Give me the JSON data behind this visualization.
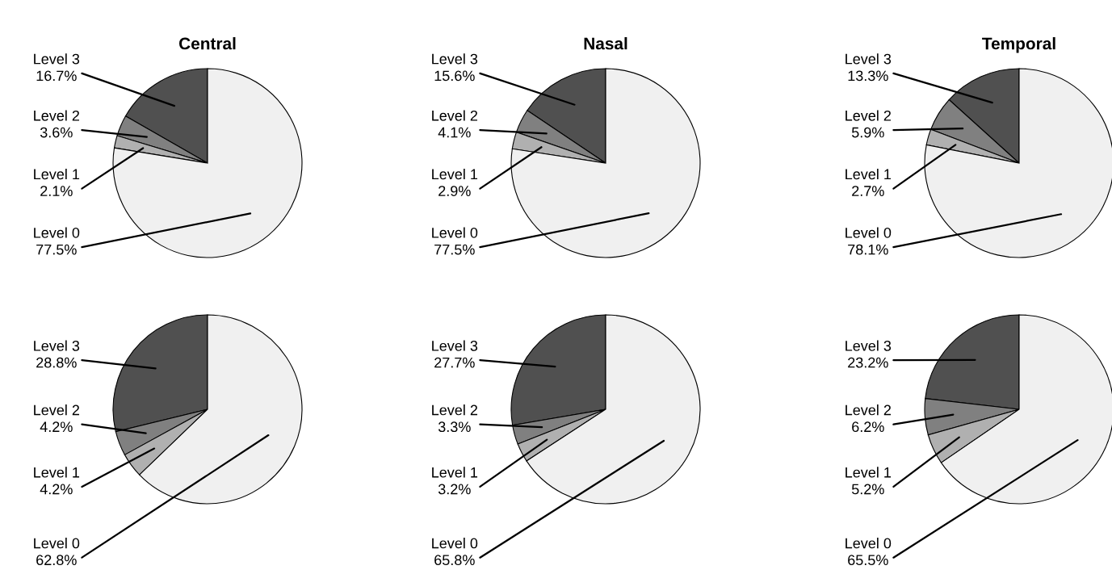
{
  "chart_data": [
    {
      "type": "pie",
      "title": "Central",
      "categories": [
        "Level 3",
        "Level 2",
        "Level 1",
        "Level 0"
      ],
      "values": [
        16.7,
        3.6,
        2.1,
        77.5
      ],
      "value_labels": [
        "16.7%",
        "3.6%",
        "2.1%",
        "77.5%"
      ],
      "colors": [
        "#505050",
        "#808080",
        "#b0b0b0",
        "#f0f0f0"
      ]
    },
    {
      "type": "pie",
      "title": "Nasal",
      "categories": [
        "Level 3",
        "Level 2",
        "Level 1",
        "Level 0"
      ],
      "values": [
        15.6,
        4.1,
        2.9,
        77.5
      ],
      "value_labels": [
        "15.6%",
        "4.1%",
        "2.9%",
        "77.5%"
      ],
      "colors": [
        "#505050",
        "#808080",
        "#b0b0b0",
        "#f0f0f0"
      ]
    },
    {
      "type": "pie",
      "title": "Temporal",
      "categories": [
        "Level 3",
        "Level 2",
        "Level 1",
        "Level 0"
      ],
      "values": [
        13.3,
        5.9,
        2.7,
        78.1
      ],
      "value_labels": [
        "13.3%",
        "5.9%",
        "2.7%",
        "78.1%"
      ],
      "colors": [
        "#505050",
        "#808080",
        "#b0b0b0",
        "#f0f0f0"
      ]
    },
    {
      "type": "pie",
      "categories": [
        "Level 3",
        "Level 2",
        "Level 1",
        "Level 0"
      ],
      "values": [
        28.8,
        4.2,
        4.2,
        62.8
      ],
      "value_labels": [
        "28.8%",
        "4.2%",
        "4.2%",
        "62.8%"
      ],
      "colors": [
        "#505050",
        "#808080",
        "#b0b0b0",
        "#f0f0f0"
      ]
    },
    {
      "type": "pie",
      "categories": [
        "Level 3",
        "Level 2",
        "Level 1",
        "Level 0"
      ],
      "values": [
        27.7,
        3.3,
        3.2,
        65.8
      ],
      "value_labels": [
        "27.7%",
        "3.3%",
        "3.2%",
        "65.8%"
      ],
      "colors": [
        "#505050",
        "#808080",
        "#b0b0b0",
        "#f0f0f0"
      ]
    },
    {
      "type": "pie",
      "categories": [
        "Level 3",
        "Level 2",
        "Level 1",
        "Level 0"
      ],
      "values": [
        23.2,
        6.2,
        5.2,
        65.5
      ],
      "value_labels": [
        "23.2%",
        "6.2%",
        "5.2%",
        "65.5%"
      ],
      "colors": [
        "#505050",
        "#808080",
        "#b0b0b0",
        "#f0f0f0"
      ]
    }
  ]
}
